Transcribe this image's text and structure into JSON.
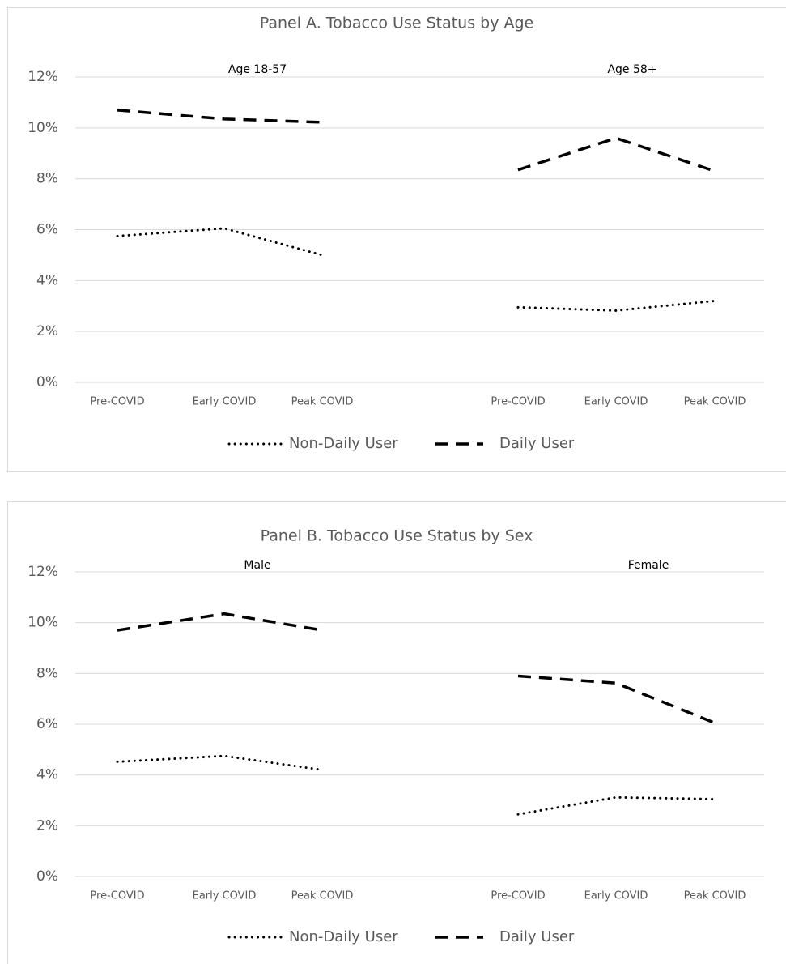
{
  "chart_data": [
    {
      "type": "line",
      "title": "Panel A. Tobacco Use Status by Age",
      "ylim": [
        0,
        12
      ],
      "yticks": [
        "0%",
        "2%",
        "4%",
        "6%",
        "8%",
        "10%",
        "12%"
      ],
      "grid": true,
      "legend_position": "bottom",
      "groups": [
        {
          "label": "Age 18-57",
          "categories": [
            "Pre-COVID",
            "Early COVID",
            "Peak COVID"
          ],
          "series": [
            {
              "name": "Non-Daily User",
              "values": [
                5.75,
                6.05,
                5.0
              ]
            },
            {
              "name": "Daily User",
              "values": [
                10.7,
                10.35,
                10.22
              ]
            }
          ]
        },
        {
          "label": "Age 58+",
          "categories": [
            "Pre-COVID",
            "Early COVID",
            "Peak COVID"
          ],
          "series": [
            {
              "name": "Non-Daily User",
              "values": [
                2.95,
                2.82,
                3.2
              ]
            },
            {
              "name": "Daily User",
              "values": [
                8.35,
                9.6,
                8.3
              ]
            }
          ]
        }
      ],
      "legend": [
        "Non-Daily User",
        "Daily User"
      ]
    },
    {
      "type": "line",
      "title": "Panel B. Tobacco Use Status by Sex",
      "ylim": [
        0,
        12
      ],
      "yticks": [
        "0%",
        "2%",
        "4%",
        "6%",
        "8%",
        "10%",
        "12%"
      ],
      "grid": true,
      "legend_position": "bottom",
      "groups": [
        {
          "label": "Male",
          "categories": [
            "Pre-COVID",
            "Early COVID",
            "Peak COVID"
          ],
          "series": [
            {
              "name": "Non-Daily User",
              "values": [
                4.52,
                4.75,
                4.2
              ]
            },
            {
              "name": "Daily User",
              "values": [
                9.7,
                10.35,
                9.7
              ]
            }
          ]
        },
        {
          "label": "Female",
          "categories": [
            "Pre-COVID",
            "Early COVID",
            "Peak COVID"
          ],
          "series": [
            {
              "name": "Non-Daily User",
              "values": [
                2.45,
                3.12,
                3.05
              ]
            },
            {
              "name": "Daily User",
              "values": [
                7.9,
                7.62,
                6.05
              ]
            }
          ]
        }
      ],
      "legend": [
        "Non-Daily User",
        "Daily User"
      ]
    }
  ],
  "style": {
    "line_color": "#000000",
    "grid_color": "#d9d9d9",
    "text_color": "#595959",
    "label_color": "#000000",
    "series_styles": {
      "Non-Daily User": "dotted",
      "Daily User": "dashed"
    }
  }
}
